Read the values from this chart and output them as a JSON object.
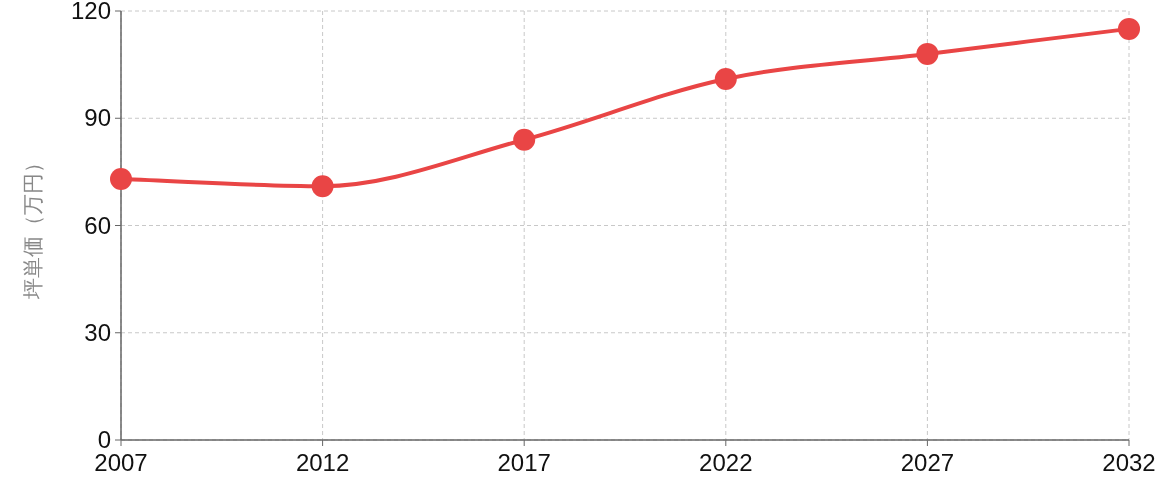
{
  "chart_data": {
    "type": "line",
    "ylabel": "坪単価（万円）",
    "x": [
      2007,
      2012,
      2017,
      2022,
      2027,
      2032
    ],
    "series": [
      {
        "color": "#e94545",
        "values": [
          73,
          71,
          84,
          101,
          108,
          115
        ]
      }
    ],
    "xlim": [
      2007,
      2032
    ],
    "xticks": [
      2007,
      2012,
      2017,
      2022,
      2027,
      2032
    ],
    "ylim": [
      0,
      120
    ],
    "yticks": [
      0,
      30,
      60,
      90,
      120
    ],
    "grid": true,
    "marker": "circle",
    "line_style": "solid"
  }
}
